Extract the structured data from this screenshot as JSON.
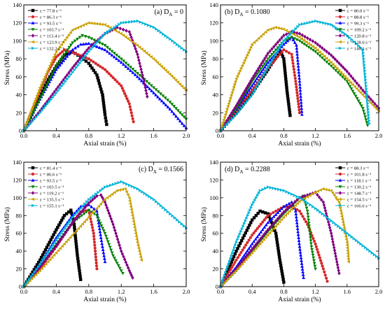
{
  "chart_data": [
    {
      "type": "line",
      "title": "(a) D",
      "title_sub": "A",
      "title_value": " = 0",
      "xlabel": "Axial strain (%)",
      "ylabel": "Stress (MPa)",
      "xlim": [
        0,
        2.0
      ],
      "ylim": [
        0,
        140
      ],
      "xticks": [
        "0.0",
        "0.4",
        "0.8",
        "1.2",
        "1.6",
        "2.0"
      ],
      "yticks": [
        "0",
        "20",
        "40",
        "60",
        "80",
        "100",
        "120",
        "140"
      ],
      "legend_position": "top-left",
      "series": [
        {
          "name": "ε = 77.8 s⁻¹",
          "color": "#000000",
          "marker": "square",
          "x": [
            0,
            0.1,
            0.2,
            0.3,
            0.4,
            0.5,
            0.6,
            0.7,
            0.8,
            0.9,
            0.97,
            1.0,
            1.02
          ],
          "y": [
            0,
            18,
            38,
            57,
            72,
            84,
            88,
            82,
            75,
            62,
            40,
            18,
            7
          ]
        },
        {
          "name": "ε = 86.3 s⁻¹",
          "color": "#d62728",
          "marker": "circle",
          "x": [
            0,
            0.1,
            0.2,
            0.3,
            0.4,
            0.5,
            0.6,
            0.8,
            1.0,
            1.2,
            1.3,
            1.35
          ],
          "y": [
            0,
            22,
            45,
            66,
            82,
            90,
            87,
            80,
            68,
            50,
            30,
            10
          ]
        },
        {
          "name": "ε = 93.5 s⁻¹",
          "color": "#0000ff",
          "marker": "triangle-up",
          "x": [
            0,
            0.2,
            0.4,
            0.6,
            0.7,
            0.8,
            1.0,
            1.2,
            1.4,
            1.6,
            1.8,
            1.95,
            2.0
          ],
          "y": [
            0,
            35,
            68,
            90,
            96,
            97,
            90,
            76,
            60,
            42,
            24,
            8,
            3
          ]
        },
        {
          "name": "ε = 103.7 s⁻¹",
          "color": "#008000",
          "marker": "triangle-down",
          "x": [
            0,
            0.2,
            0.4,
            0.6,
            0.72,
            0.8,
            1.0,
            1.2,
            1.4,
            1.6,
            1.8,
            2.0
          ],
          "y": [
            0,
            36,
            72,
            98,
            106,
            104,
            95,
            80,
            64,
            48,
            32,
            13
          ]
        },
        {
          "name": "ε = 113.4 s⁻¹",
          "color": "#800080",
          "marker": "diamond",
          "x": [
            0,
            0.2,
            0.4,
            0.6,
            0.8,
            1.0,
            1.15,
            1.3,
            1.4,
            1.48,
            1.52
          ],
          "y": [
            0,
            22,
            46,
            70,
            92,
            108,
            115,
            110,
            85,
            55,
            38
          ]
        },
        {
          "name": "ε = 123.9 s⁻¹",
          "color": "#c8a000",
          "marker": "triangle-left",
          "x": [
            0,
            0.2,
            0.4,
            0.6,
            0.8,
            1.0,
            1.2,
            1.4,
            1.6,
            1.8,
            2.0
          ],
          "y": [
            0,
            48,
            88,
            112,
            120,
            118,
            108,
            95,
            80,
            63,
            45
          ]
        },
        {
          "name": "ε = 132.2 s⁻¹",
          "color": "#00b4d8",
          "marker": "triangle-right",
          "x": [
            0,
            0.2,
            0.4,
            0.6,
            0.8,
            1.0,
            1.2,
            1.4,
            1.6,
            1.8,
            2.0
          ],
          "y": [
            0,
            20,
            42,
            65,
            88,
            108,
            120,
            122,
            115,
            102,
            88
          ]
        }
      ]
    },
    {
      "type": "line",
      "title": "(b) D",
      "title_sub": "A",
      "title_value": " = 0.1080",
      "xlabel": "Axial strain (%)",
      "ylabel": "Stress (MPa)",
      "xlim": [
        0,
        2.0
      ],
      "ylim": [
        0,
        140
      ],
      "xticks": [
        "0.0",
        "0.4",
        "0.8",
        "1.2",
        "1.6",
        "2.0"
      ],
      "yticks": [
        "0",
        "20",
        "40",
        "60",
        "80",
        "100",
        "120",
        "140"
      ],
      "legend_position": "top-right",
      "series": [
        {
          "name": "ε = 80.0 s⁻¹",
          "color": "#000000",
          "marker": "square",
          "x": [
            0,
            0.2,
            0.4,
            0.6,
            0.7,
            0.76,
            0.8,
            0.84,
            0.88
          ],
          "y": [
            0,
            20,
            42,
            68,
            82,
            88,
            80,
            45,
            17
          ]
        },
        {
          "name": "ε = 88.8 s⁻¹",
          "color": "#d62728",
          "marker": "circle",
          "x": [
            0,
            0.2,
            0.4,
            0.6,
            0.8,
            0.9,
            0.95,
            1.0
          ],
          "y": [
            0,
            22,
            45,
            70,
            90,
            85,
            55,
            20
          ]
        },
        {
          "name": "ε = 99.3 s⁻¹",
          "color": "#0000ff",
          "marker": "triangle-up",
          "x": [
            0,
            0.2,
            0.4,
            0.6,
            0.8,
            0.9,
            0.96,
            1.0,
            1.03
          ],
          "y": [
            0,
            24,
            50,
            76,
            96,
            104,
            95,
            55,
            18
          ]
        },
        {
          "name": "ε = 109.2 s⁻¹",
          "color": "#008000",
          "marker": "triangle-down",
          "x": [
            0,
            0.2,
            0.4,
            0.6,
            0.8,
            0.9,
            1.0,
            1.2,
            1.4,
            1.6,
            1.8,
            1.86
          ],
          "y": [
            0,
            25,
            55,
            80,
            100,
            104,
            100,
            88,
            72,
            55,
            25,
            6
          ]
        },
        {
          "name": "ε = 120.8 s⁻¹",
          "color": "#800080",
          "marker": "diamond",
          "x": [
            0,
            0.2,
            0.4,
            0.6,
            0.8,
            0.9,
            1.0,
            1.2,
            1.4,
            1.6,
            1.8,
            2.0
          ],
          "y": [
            0,
            28,
            58,
            86,
            106,
            110,
            108,
            98,
            84,
            66,
            45,
            25
          ]
        },
        {
          "name": "ε = 128.6 s⁻¹",
          "color": "#c8a000",
          "marker": "triangle-left",
          "x": [
            0,
            0.2,
            0.4,
            0.6,
            0.7,
            0.8,
            1.0,
            1.2,
            1.4,
            1.6,
            1.8,
            2.0
          ],
          "y": [
            0,
            58,
            96,
            112,
            115,
            113,
            104,
            92,
            76,
            58,
            40,
            22
          ]
        },
        {
          "name": "ε = 145.1 s⁻¹",
          "color": "#00b4d8",
          "marker": "triangle-right",
          "x": [
            0,
            0.2,
            0.4,
            0.6,
            0.8,
            1.0,
            1.2,
            1.4,
            1.6,
            1.8,
            1.85,
            1.88
          ],
          "y": [
            0,
            18,
            40,
            70,
            100,
            118,
            122,
            118,
            106,
            90,
            40,
            8
          ]
        }
      ]
    },
    {
      "type": "line",
      "title": "(c) D",
      "title_sub": "A",
      "title_value": " = 0.1566",
      "xlabel": "Axial strain (%)",
      "ylabel": "Stress (MPa)",
      "xlim": [
        0,
        2.0
      ],
      "ylim": [
        0,
        140
      ],
      "xticks": [
        "0.0",
        "0.4",
        "0.8",
        "1.2",
        "1.6",
        "2.0"
      ],
      "yticks": [
        "0",
        "20",
        "40",
        "60",
        "80",
        "100",
        "120",
        "140"
      ],
      "legend_position": "top-left",
      "series": [
        {
          "name": "ε = 81.4 s⁻¹",
          "color": "#000000",
          "marker": "square",
          "x": [
            0,
            0.2,
            0.4,
            0.5,
            0.58,
            0.62,
            0.66,
            0.7
          ],
          "y": [
            0,
            30,
            64,
            80,
            86,
            70,
            35,
            8
          ]
        },
        {
          "name": "ε = 86.6 s⁻¹",
          "color": "#d62728",
          "marker": "circle",
          "x": [
            0,
            0.2,
            0.4,
            0.6,
            0.7,
            0.8,
            0.86,
            0.9
          ],
          "y": [
            0,
            20,
            45,
            72,
            84,
            86,
            60,
            20
          ]
        },
        {
          "name": "ε = 93.5 s⁻¹",
          "color": "#0000ff",
          "marker": "triangle-up",
          "x": [
            0,
            0.2,
            0.4,
            0.6,
            0.7,
            0.8,
            0.9,
            0.95,
            1.0
          ],
          "y": [
            0,
            25,
            55,
            80,
            90,
            92,
            85,
            55,
            28
          ]
        },
        {
          "name": "ε = 103.5 s⁻¹",
          "color": "#008000",
          "marker": "triangle-down",
          "x": [
            0,
            0.2,
            0.4,
            0.6,
            0.8,
            0.9,
            1.0,
            1.1,
            1.2,
            1.22
          ],
          "y": [
            0,
            22,
            48,
            72,
            86,
            80,
            60,
            35,
            18,
            15
          ]
        },
        {
          "name": "ε = 119.2 s⁻¹",
          "color": "#800080",
          "marker": "diamond",
          "x": [
            0,
            0.2,
            0.4,
            0.6,
            0.8,
            0.9,
            0.95,
            1.0,
            1.1,
            1.2,
            1.3,
            1.34
          ],
          "y": [
            0,
            22,
            46,
            72,
            94,
            102,
            103,
            95,
            70,
            40,
            18,
            10
          ]
        },
        {
          "name": "ε = 135.5 s⁻¹",
          "color": "#c8a000",
          "marker": "triangle-left",
          "x": [
            0,
            0.2,
            0.4,
            0.6,
            0.8,
            1.0,
            1.15,
            1.25,
            1.3,
            1.4,
            1.45
          ],
          "y": [
            0,
            18,
            38,
            58,
            78,
            98,
            108,
            110,
            100,
            50,
            30
          ]
        },
        {
          "name": "ε = 155.1 s⁻¹",
          "color": "#00b4d8",
          "marker": "triangle-right",
          "x": [
            0,
            0.2,
            0.4,
            0.6,
            0.8,
            1.0,
            1.2,
            1.4,
            1.6,
            1.8,
            2.0
          ],
          "y": [
            0,
            25,
            52,
            78,
            98,
            112,
            118,
            110,
            98,
            82,
            66
          ]
        }
      ]
    },
    {
      "type": "line",
      "title": "(d) D",
      "title_sub": "A",
      "title_value": " = 0.2288",
      "xlabel": "Axial strain (%)",
      "ylabel": "Stress (MPa)",
      "xlim": [
        0,
        2.0
      ],
      "ylim": [
        0,
        140
      ],
      "xticks": [
        "0.0",
        "0.4",
        "0.8",
        "1.2",
        "1.6",
        "2.0"
      ],
      "yticks": [
        "0",
        "20",
        "40",
        "60",
        "80",
        "100",
        "120",
        "140"
      ],
      "legend_position": "top-right",
      "series": [
        {
          "name": "ε = 88.3 s⁻¹",
          "color": "#000000",
          "marker": "square",
          "x": [
            0,
            0.2,
            0.4,
            0.5,
            0.6,
            0.7,
            0.75,
            0.8
          ],
          "y": [
            0,
            40,
            75,
            85,
            82,
            60,
            30,
            5
          ]
        },
        {
          "name": "ε = 101.8 s⁻¹",
          "color": "#d62728",
          "marker": "circle",
          "x": [
            0,
            0.2,
            0.4,
            0.6,
            0.8,
            0.9,
            1.0,
            1.1,
            1.2,
            1.3,
            1.35
          ],
          "y": [
            0,
            30,
            58,
            80,
            90,
            90,
            85,
            70,
            48,
            20,
            6
          ]
        },
        {
          "name": "ε = 118.1 s⁻¹",
          "color": "#0000ff",
          "marker": "triangle-up",
          "x": [
            0,
            0.2,
            0.4,
            0.6,
            0.8,
            0.9,
            0.95,
            1.0,
            1.05
          ],
          "y": [
            0,
            22,
            48,
            72,
            90,
            95,
            85,
            45,
            10
          ]
        },
        {
          "name": "ε = 130.2 s⁻¹",
          "color": "#008000",
          "marker": "triangle-down",
          "x": [
            0,
            0.2,
            0.4,
            0.6,
            0.8,
            1.0,
            1.05,
            1.1,
            1.15,
            1.2
          ],
          "y": [
            0,
            18,
            40,
            62,
            82,
            100,
            102,
            85,
            45,
            20
          ]
        },
        {
          "name": "ε = 148.7 s⁻¹",
          "color": "#800080",
          "marker": "diamond",
          "x": [
            0,
            0.2,
            0.4,
            0.6,
            0.8,
            1.0,
            1.2,
            1.3,
            1.4,
            1.5
          ],
          "y": [
            0,
            20,
            42,
            64,
            84,
            100,
            106,
            95,
            60,
            15
          ]
        },
        {
          "name": "ε = 154.5 s⁻¹",
          "color": "#c8a000",
          "marker": "triangle-left",
          "x": [
            0,
            0.2,
            0.4,
            0.6,
            0.8,
            1.0,
            1.2,
            1.3,
            1.4,
            1.5,
            1.6,
            1.62
          ],
          "y": [
            0,
            18,
            38,
            58,
            78,
            96,
            106,
            110,
            108,
            95,
            50,
            28
          ]
        },
        {
          "name": "ε = 166.6 s⁻¹",
          "color": "#00b4d8",
          "marker": "triangle-right",
          "x": [
            0,
            0.2,
            0.4,
            0.5,
            0.6,
            0.8,
            1.0,
            1.2,
            1.4,
            1.6,
            1.8,
            2.0
          ],
          "y": [
            0,
            50,
            92,
            108,
            112,
            108,
            100,
            88,
            74,
            60,
            46,
            32
          ]
        }
      ]
    }
  ]
}
